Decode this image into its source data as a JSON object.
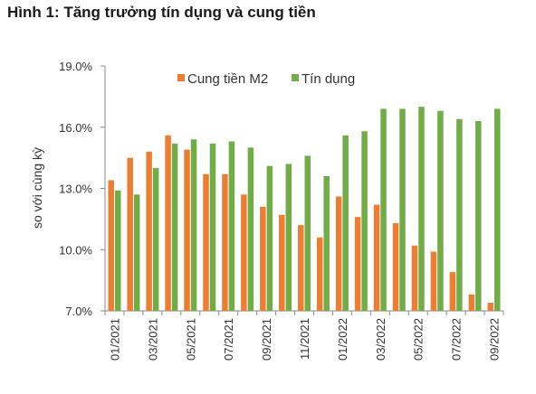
{
  "chart_data": {
    "type": "bar",
    "title": "Hình 1: Tăng trưởng tín dụng và cung tiền",
    "ylabel": "so với cùng kỳ",
    "xlabel": "",
    "ylim": [
      7.0,
      19.0
    ],
    "yticks": [
      "7.0%",
      "10.0%",
      "13.0%",
      "16.0%",
      "19.0%"
    ],
    "ytick_values": [
      7,
      10,
      13,
      16,
      19
    ],
    "categories": [
      "01/2021",
      "02/2021",
      "03/2021",
      "04/2021",
      "05/2021",
      "06/2021",
      "07/2021",
      "08/2021",
      "09/2021",
      "10/2021",
      "11/2021",
      "12/2021",
      "01/2022",
      "02/2022",
      "03/2022",
      "04/2022",
      "05/2022",
      "06/2022",
      "07/2022",
      "08/2022",
      "09/2022"
    ],
    "xtick_labels": [
      "01/2021",
      "03/2021",
      "05/2021",
      "07/2021",
      "09/2021",
      "11/2021",
      "01/2022",
      "03/2022",
      "05/2022",
      "07/2022",
      "09/2022"
    ],
    "xtick_indices": [
      0,
      2,
      4,
      6,
      8,
      10,
      12,
      14,
      16,
      18,
      20
    ],
    "series": [
      {
        "name": "Cung tiền M2",
        "color": "#ed7d31",
        "values": [
          13.4,
          14.5,
          14.8,
          15.6,
          14.9,
          13.7,
          13.7,
          12.7,
          12.1,
          11.7,
          11.2,
          10.6,
          12.6,
          11.6,
          12.2,
          11.3,
          10.2,
          9.9,
          8.9,
          7.8,
          7.4
        ]
      },
      {
        "name": "Tín dụng",
        "color": "#70ad47",
        "values": [
          12.9,
          12.7,
          14.0,
          15.2,
          15.4,
          15.2,
          15.3,
          15.0,
          14.1,
          14.2,
          14.6,
          13.6,
          15.6,
          15.8,
          16.9,
          16.9,
          17.0,
          16.8,
          16.4,
          16.3,
          16.9
        ]
      }
    ],
    "legend": "top",
    "grid": false
  }
}
